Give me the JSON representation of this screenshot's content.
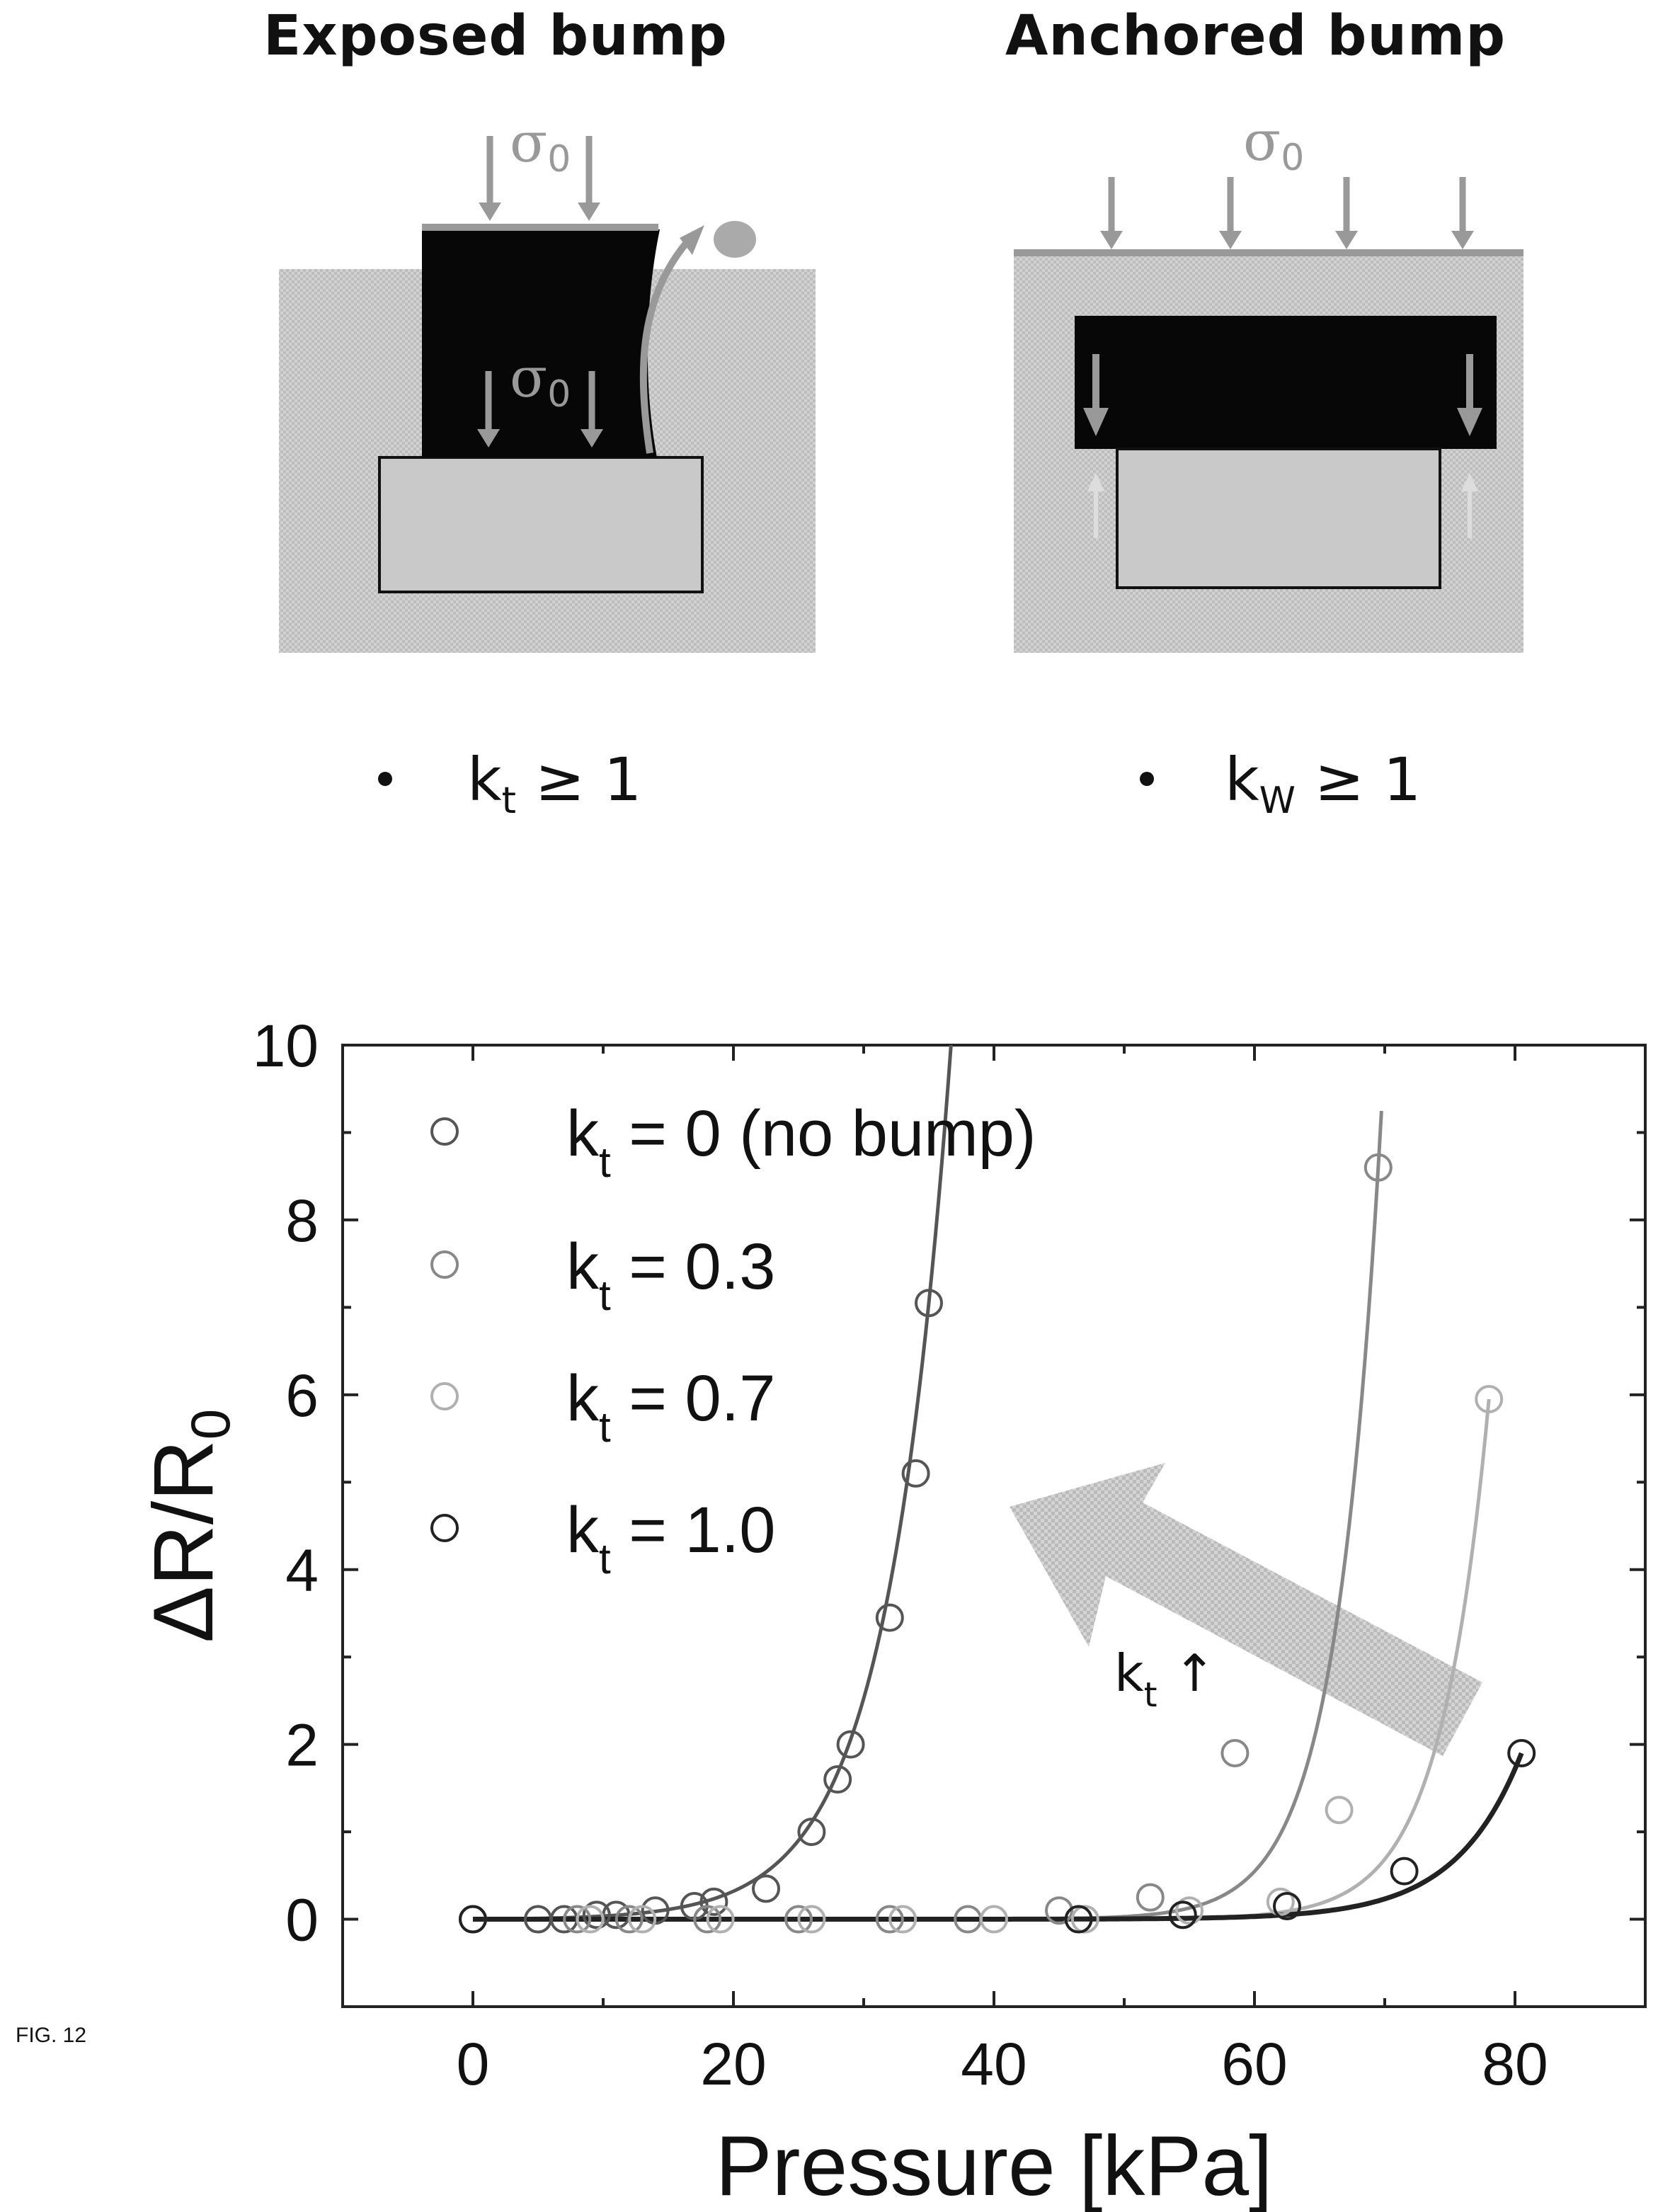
{
  "left_diagram": {
    "title": "Exposed bump",
    "stress_top": "σ0",
    "stress_inner": "σ0",
    "condition_k": "k",
    "condition_sub": "t",
    "condition_rest": " ≥ 1"
  },
  "right_diagram": {
    "title": "Anchored bump",
    "stress_top": "σ0",
    "condition_k": "k",
    "condition_sub": "W",
    "condition_rest": " ≥ 1"
  },
  "figure_label": "FIG. 12",
  "chart_data": {
    "type": "scatter",
    "xlabel": "Pressure [kPa]",
    "ylabel": "ΔR/R0",
    "xlim": [
      -10,
      90
    ],
    "ylim": [
      -1,
      10
    ],
    "xticks": [
      0,
      20,
      40,
      60,
      80
    ],
    "yticks": [
      0,
      2,
      4,
      6,
      8,
      10
    ],
    "grid": false,
    "legend_position": "top-left",
    "annotation": "kt ↑",
    "colors": {
      "kt_0": "#555555",
      "kt_0_3": "#888888",
      "kt_0_7": "#b0b0b0",
      "kt_1_0": "#222222"
    },
    "series": [
      {
        "name": "kt = 0 (no bump)",
        "color_key": "kt_0",
        "x": [
          0,
          5,
          7,
          9.5,
          11,
          14,
          17,
          18.5,
          22.5,
          26,
          28,
          29,
          32,
          34,
          35
        ],
        "y": [
          0,
          0,
          0,
          0.05,
          0.05,
          0.1,
          0.15,
          0.2,
          0.35,
          1.0,
          1.6,
          2.0,
          3.45,
          5.1,
          7.05
        ]
      },
      {
        "name": "kt = 0.3",
        "color_key": "kt_0_3",
        "x": [
          0,
          8,
          12,
          18,
          25,
          32,
          38,
          45,
          52,
          58.5,
          69.5
        ],
        "y": [
          0,
          0,
          0,
          0,
          0,
          0,
          0,
          0.1,
          0.25,
          1.9,
          8.6
        ]
      },
      {
        "name": "kt = 0.7",
        "color_key": "kt_0_7",
        "x": [
          0,
          9,
          13,
          19,
          26,
          33,
          40,
          47,
          55,
          62,
          66.5,
          78
        ],
        "y": [
          0,
          0,
          0,
          0,
          0,
          0,
          0,
          0,
          0.1,
          0.2,
          1.25,
          5.95
        ]
      },
      {
        "name": "kt = 1.0",
        "color_key": "kt_1_0",
        "x": [
          0,
          46.5,
          54.5,
          62.5,
          71.5,
          80.5
        ],
        "y": [
          0,
          0,
          0.05,
          0.15,
          0.55,
          1.9
        ]
      }
    ]
  }
}
